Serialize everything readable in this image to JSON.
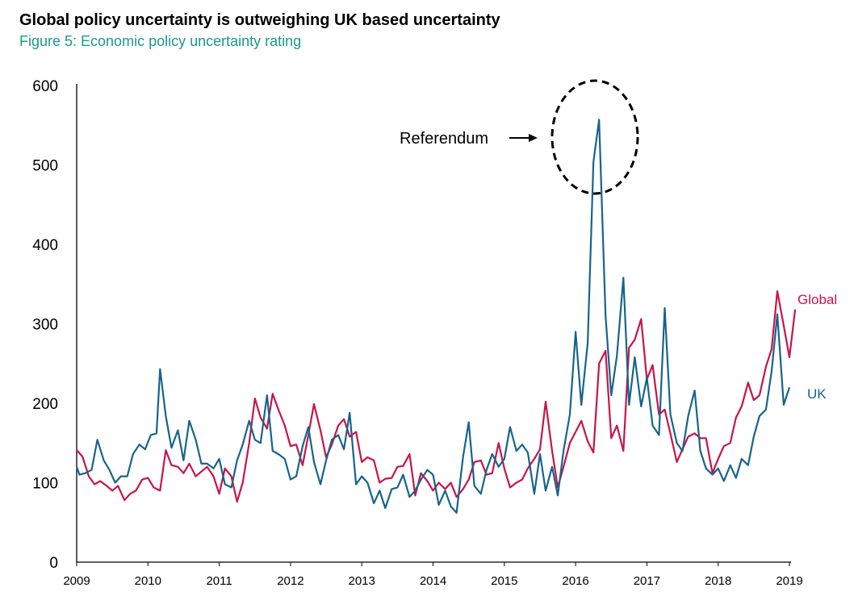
{
  "title": "Global policy uncertainty is outweighing UK based uncertainty",
  "subtitle": "Figure 5: Economic policy uncertainty rating",
  "colors": {
    "global": "#c8144a",
    "uk": "#16648c",
    "subtitle": "#1a9a8c"
  },
  "chart_data": {
    "type": "line",
    "title": "Global policy uncertainty is outweighing UK based uncertainty",
    "subtitle": "Figure 5: Economic policy uncertainty rating",
    "xlabel": "",
    "ylabel": "",
    "ylim": [
      0,
      600
    ],
    "yticks": [
      0,
      100,
      200,
      300,
      400,
      500,
      600
    ],
    "xlim": [
      2009,
      2019
    ],
    "xticks": [
      "2009",
      "2010",
      "2011",
      "2012",
      "2013",
      "2014",
      "2015",
      "2016",
      "2017",
      "2018",
      "2019"
    ],
    "grid": false,
    "annotation": {
      "text": "Referendum",
      "x": 2016.27,
      "y": 557
    },
    "series": [
      {
        "name": "Global",
        "color": "#c8144a",
        "values": [
          [
            2009.0,
            141
          ],
          [
            2009.08,
            133
          ],
          [
            2009.17,
            108
          ],
          [
            2009.25,
            98
          ],
          [
            2009.33,
            102
          ],
          [
            2009.42,
            96
          ],
          [
            2009.5,
            90
          ],
          [
            2009.58,
            96
          ],
          [
            2009.67,
            78
          ],
          [
            2009.75,
            86
          ],
          [
            2009.83,
            90
          ],
          [
            2009.92,
            104
          ],
          [
            2010.0,
            106
          ],
          [
            2010.08,
            94
          ],
          [
            2010.17,
            90
          ],
          [
            2010.25,
            141
          ],
          [
            2010.33,
            122
          ],
          [
            2010.42,
            120
          ],
          [
            2010.5,
            112
          ],
          [
            2010.58,
            124
          ],
          [
            2010.67,
            108
          ],
          [
            2010.75,
            114
          ],
          [
            2010.83,
            120
          ],
          [
            2010.92,
            108
          ],
          [
            2011.0,
            86
          ],
          [
            2011.08,
            118
          ],
          [
            2011.17,
            108
          ],
          [
            2011.25,
            76
          ],
          [
            2011.33,
            100
          ],
          [
            2011.42,
            150
          ],
          [
            2011.5,
            206
          ],
          [
            2011.58,
            182
          ],
          [
            2011.67,
            168
          ],
          [
            2011.75,
            212
          ],
          [
            2011.83,
            192
          ],
          [
            2011.92,
            172
          ],
          [
            2012.0,
            146
          ],
          [
            2012.08,
            148
          ],
          [
            2012.17,
            122
          ],
          [
            2012.25,
            160
          ],
          [
            2012.33,
            199
          ],
          [
            2012.42,
            166
          ],
          [
            2012.5,
            132
          ],
          [
            2012.58,
            148
          ],
          [
            2012.67,
            172
          ],
          [
            2012.75,
            180
          ],
          [
            2012.83,
            158
          ],
          [
            2012.92,
            164
          ],
          [
            2013.0,
            126
          ],
          [
            2013.08,
            132
          ],
          [
            2013.17,
            128
          ],
          [
            2013.25,
            100
          ],
          [
            2013.33,
            105
          ],
          [
            2013.42,
            106
          ],
          [
            2013.5,
            120
          ],
          [
            2013.58,
            121
          ],
          [
            2013.67,
            136
          ],
          [
            2013.75,
            84
          ],
          [
            2013.83,
            112
          ],
          [
            2013.92,
            102
          ],
          [
            2014.0,
            90
          ],
          [
            2014.08,
            100
          ],
          [
            2014.17,
            92
          ],
          [
            2014.25,
            100
          ],
          [
            2014.33,
            82
          ],
          [
            2014.42,
            92
          ],
          [
            2014.5,
            104
          ],
          [
            2014.58,
            126
          ],
          [
            2014.67,
            128
          ],
          [
            2014.75,
            110
          ],
          [
            2014.83,
            112
          ],
          [
            2014.92,
            150
          ],
          [
            2015.0,
            118
          ],
          [
            2015.08,
            94
          ],
          [
            2015.17,
            100
          ],
          [
            2015.25,
            104
          ],
          [
            2015.33,
            118
          ],
          [
            2015.42,
            130
          ],
          [
            2015.5,
            142
          ],
          [
            2015.58,
            202
          ],
          [
            2015.67,
            140
          ],
          [
            2015.75,
            94
          ],
          [
            2015.83,
            120
          ],
          [
            2015.92,
            150
          ],
          [
            2016.0,
            164
          ],
          [
            2016.08,
            178
          ],
          [
            2016.17,
            152
          ],
          [
            2016.25,
            138
          ],
          [
            2016.33,
            250
          ],
          [
            2016.42,
            266
          ],
          [
            2016.5,
            156
          ],
          [
            2016.58,
            172
          ],
          [
            2016.67,
            140
          ],
          [
            2016.75,
            270
          ],
          [
            2016.83,
            280
          ],
          [
            2016.92,
            306
          ],
          [
            2017.0,
            230
          ],
          [
            2017.08,
            248
          ],
          [
            2017.17,
            186
          ],
          [
            2017.25,
            192
          ],
          [
            2017.33,
            162
          ],
          [
            2017.42,
            126
          ],
          [
            2017.5,
            142
          ],
          [
            2017.58,
            158
          ],
          [
            2017.67,
            162
          ],
          [
            2017.75,
            156
          ],
          [
            2017.83,
            156
          ],
          [
            2017.92,
            112
          ],
          [
            2018.0,
            130
          ],
          [
            2018.08,
            146
          ],
          [
            2018.17,
            150
          ],
          [
            2018.25,
            182
          ],
          [
            2018.33,
            196
          ],
          [
            2018.42,
            226
          ],
          [
            2018.5,
            204
          ],
          [
            2018.58,
            210
          ],
          [
            2018.67,
            246
          ],
          [
            2018.75,
            268
          ],
          [
            2018.83,
            341
          ],
          [
            2018.92,
            298
          ],
          [
            2019.0,
            258
          ],
          [
            2019.08,
            318
          ]
        ]
      },
      {
        "name": "UK",
        "color": "#16648c",
        "values": [
          [
            2009.0,
            120
          ],
          [
            2009.04,
            110
          ],
          [
            2009.12,
            112
          ],
          [
            2009.21,
            116
          ],
          [
            2009.29,
            154
          ],
          [
            2009.38,
            128
          ],
          [
            2009.46,
            116
          ],
          [
            2009.54,
            100
          ],
          [
            2009.62,
            108
          ],
          [
            2009.71,
            108
          ],
          [
            2009.79,
            136
          ],
          [
            2009.88,
            148
          ],
          [
            2009.96,
            142
          ],
          [
            2010.04,
            160
          ],
          [
            2010.12,
            162
          ],
          [
            2010.17,
            243
          ],
          [
            2010.25,
            184
          ],
          [
            2010.33,
            144
          ],
          [
            2010.42,
            166
          ],
          [
            2010.5,
            128
          ],
          [
            2010.58,
            178
          ],
          [
            2010.67,
            154
          ],
          [
            2010.75,
            124
          ],
          [
            2010.83,
            124
          ],
          [
            2010.92,
            118
          ],
          [
            2011.0,
            130
          ],
          [
            2011.08,
            98
          ],
          [
            2011.17,
            94
          ],
          [
            2011.25,
            128
          ],
          [
            2011.33,
            148
          ],
          [
            2011.42,
            178
          ],
          [
            2011.5,
            154
          ],
          [
            2011.58,
            150
          ],
          [
            2011.67,
            210
          ],
          [
            2011.75,
            140
          ],
          [
            2011.83,
            136
          ],
          [
            2011.92,
            130
          ],
          [
            2012.0,
            104
          ],
          [
            2012.08,
            108
          ],
          [
            2012.17,
            146
          ],
          [
            2012.25,
            170
          ],
          [
            2012.33,
            126
          ],
          [
            2012.42,
            98
          ],
          [
            2012.5,
            128
          ],
          [
            2012.58,
            154
          ],
          [
            2012.67,
            160
          ],
          [
            2012.75,
            142
          ],
          [
            2012.83,
            188
          ],
          [
            2012.92,
            98
          ],
          [
            2013.0,
            108
          ],
          [
            2013.08,
            100
          ],
          [
            2013.17,
            74
          ],
          [
            2013.25,
            90
          ],
          [
            2013.33,
            68
          ],
          [
            2013.42,
            92
          ],
          [
            2013.5,
            94
          ],
          [
            2013.58,
            110
          ],
          [
            2013.67,
            82
          ],
          [
            2013.75,
            90
          ],
          [
            2013.83,
            104
          ],
          [
            2013.92,
            116
          ],
          [
            2014.0,
            110
          ],
          [
            2014.08,
            72
          ],
          [
            2014.17,
            90
          ],
          [
            2014.25,
            70
          ],
          [
            2014.33,
            62
          ],
          [
            2014.42,
            132
          ],
          [
            2014.5,
            176
          ],
          [
            2014.58,
            96
          ],
          [
            2014.67,
            86
          ],
          [
            2014.75,
            116
          ],
          [
            2014.83,
            136
          ],
          [
            2014.92,
            120
          ],
          [
            2015.0,
            130
          ],
          [
            2015.08,
            170
          ],
          [
            2015.17,
            140
          ],
          [
            2015.25,
            148
          ],
          [
            2015.33,
            138
          ],
          [
            2015.42,
            86
          ],
          [
            2015.5,
            136
          ],
          [
            2015.58,
            90
          ],
          [
            2015.67,
            120
          ],
          [
            2015.75,
            84
          ],
          [
            2015.83,
            140
          ],
          [
            2015.92,
            186
          ],
          [
            2016.0,
            290
          ],
          [
            2016.08,
            198
          ],
          [
            2016.17,
            276
          ],
          [
            2016.25,
            504
          ],
          [
            2016.33,
            557
          ],
          [
            2016.42,
            310
          ],
          [
            2016.5,
            210
          ],
          [
            2016.58,
            260
          ],
          [
            2016.67,
            358
          ],
          [
            2016.75,
            198
          ],
          [
            2016.83,
            258
          ],
          [
            2016.92,
            196
          ],
          [
            2017.0,
            232
          ],
          [
            2017.08,
            172
          ],
          [
            2017.17,
            160
          ],
          [
            2017.25,
            320
          ],
          [
            2017.33,
            186
          ],
          [
            2017.42,
            150
          ],
          [
            2017.5,
            140
          ],
          [
            2017.58,
            184
          ],
          [
            2017.67,
            216
          ],
          [
            2017.75,
            140
          ],
          [
            2017.83,
            118
          ],
          [
            2017.92,
            110
          ],
          [
            2018.0,
            118
          ],
          [
            2018.08,
            102
          ],
          [
            2018.17,
            122
          ],
          [
            2018.25,
            106
          ],
          [
            2018.33,
            130
          ],
          [
            2018.42,
            122
          ],
          [
            2018.5,
            158
          ],
          [
            2018.58,
            184
          ],
          [
            2018.67,
            192
          ],
          [
            2018.75,
            240
          ],
          [
            2018.83,
            312
          ],
          [
            2018.92,
            198
          ],
          [
            2019.0,
            220
          ]
        ]
      }
    ]
  }
}
